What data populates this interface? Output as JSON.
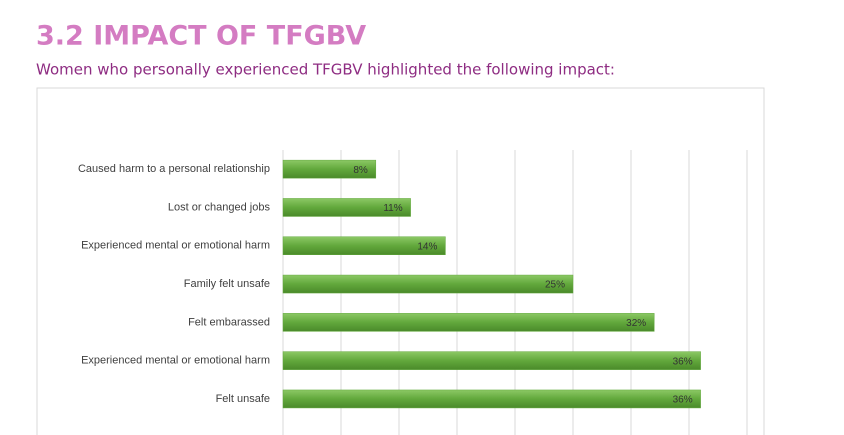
{
  "chart_data": {
    "type": "bar",
    "orientation": "horizontal",
    "title": "3.2 IMPACT OF TFGBV",
    "subtitle": "Women who personally experienced TFGBV highlighted the following impact:",
    "categories": [
      "Caused harm to a personal relationship",
      "Lost or changed jobs",
      "Experienced mental or emotional harm",
      "Family felt unsafe",
      "Felt embarassed",
      "Experienced mental or emotional harm",
      "Felt unsafe"
    ],
    "values": [
      8,
      11,
      14,
      25,
      32,
      36,
      36
    ],
    "value_labels": [
      "8%",
      "11%",
      "14%",
      "25%",
      "32%",
      "36%",
      "36%"
    ],
    "color": "#62a83c",
    "xlim": [
      0,
      40
    ],
    "xticks": [
      0,
      5,
      10,
      15,
      20,
      25,
      30,
      35,
      40
    ],
    "grid": true
  }
}
